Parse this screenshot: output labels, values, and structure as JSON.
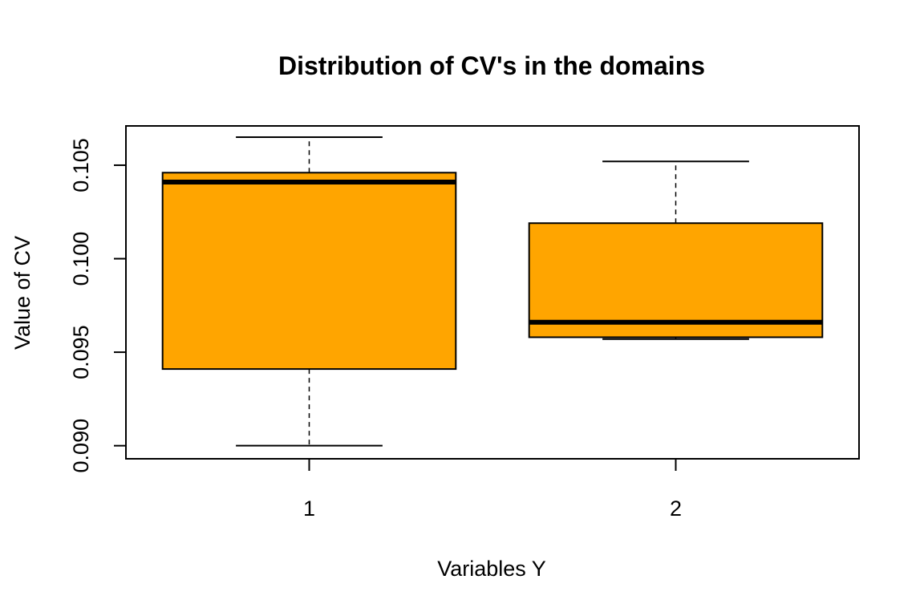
{
  "chart_data": {
    "type": "boxplot",
    "title": "Distribution of CV's in the domains",
    "xlabel": "Variables Y",
    "ylabel": "Value of CV",
    "ylim": [
      0.0893,
      0.1071
    ],
    "yticks": [
      "0.090",
      "0.095",
      "0.100",
      "0.105"
    ],
    "ytick_values": [
      0.09,
      0.095,
      0.1,
      0.105
    ],
    "categories": [
      "1",
      "2"
    ],
    "boxes": [
      {
        "label": "1",
        "min": 0.09,
        "q1": 0.0941,
        "median": 0.1041,
        "q3": 0.1046,
        "max": 0.1065
      },
      {
        "label": "2",
        "min": 0.0957,
        "q1": 0.0958,
        "median": 0.0966,
        "q3": 0.1019,
        "max": 0.1052
      }
    ],
    "box_color": "#FFA500",
    "grid": false,
    "legend": "none"
  }
}
